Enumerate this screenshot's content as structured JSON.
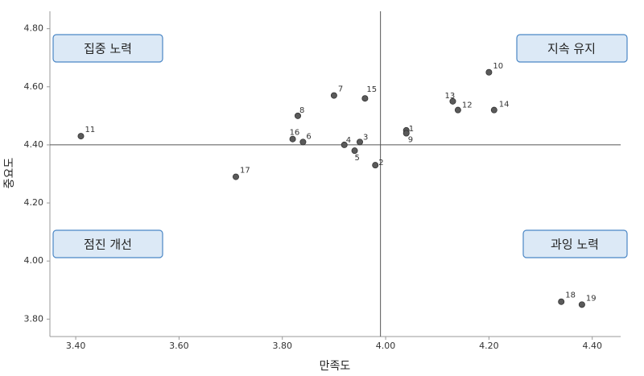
{
  "chart_data": {
    "type": "scatter",
    "x_label": "만족도",
    "y_label": "중요도",
    "quadrant_labels": {
      "top_left": "집중 노력",
      "top_right": "지속 유지",
      "bottom_left": "점진 개선",
      "bottom_right": "과잉 노력"
    },
    "series": [
      {
        "name": null,
        "color": "#5a5a5a",
        "labels": [
          "1",
          "2",
          "3",
          "4",
          "5",
          "6",
          "7",
          "8",
          "9",
          "10",
          "11",
          "12",
          "13",
          "14",
          "15",
          "16",
          "17",
          "18",
          "19"
        ],
        "x": [
          4.04,
          3.98,
          3.95,
          3.92,
          3.94,
          3.84,
          3.9,
          3.83,
          4.04,
          4.2,
          3.41,
          4.14,
          4.13,
          4.21,
          3.96,
          3.82,
          3.71,
          4.34,
          4.38
        ],
        "values": [
          4.45,
          4.33,
          4.41,
          4.4,
          4.38,
          4.41,
          4.57,
          4.5,
          4.44,
          4.65,
          4.43,
          4.52,
          4.55,
          4.52,
          4.56,
          4.42,
          4.29,
          3.86,
          3.85
        ]
      }
    ],
    "reference_lines": {
      "x": 3.99,
      "y": 4.4
    },
    "xlim": [
      3.35,
      4.455
    ],
    "ylim": [
      3.74,
      4.86
    ],
    "xticks": [
      {
        "value": 3.4,
        "label": "3.40"
      },
      {
        "value": 3.6,
        "label": "3.60"
      },
      {
        "value": 3.8,
        "label": "3.80"
      },
      {
        "value": 4.0,
        "label": "4.00"
      },
      {
        "value": 4.2,
        "label": "4.20"
      },
      {
        "value": 4.4,
        "label": "4.40"
      }
    ],
    "yticks": [
      {
        "value": 3.8,
        "label": "3.80"
      },
      {
        "value": 4.0,
        "label": "4.00"
      },
      {
        "value": 4.2,
        "label": "4.20"
      },
      {
        "value": 4.4,
        "label": "4.40"
      },
      {
        "value": 4.6,
        "label": "4.60"
      },
      {
        "value": 4.8,
        "label": "4.80"
      }
    ],
    "grid": false
  }
}
